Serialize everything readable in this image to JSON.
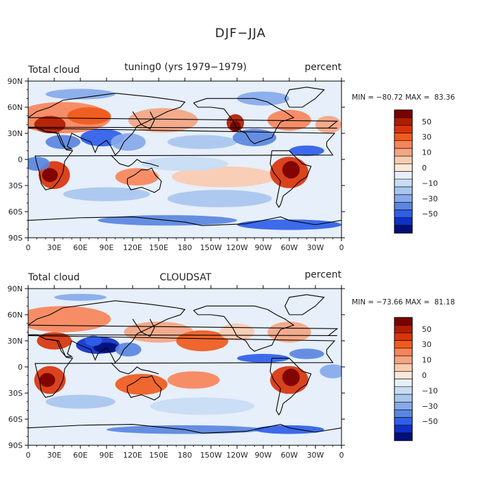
{
  "figure": {
    "title": "DJF−JJA"
  },
  "colors": {
    "levels_desc": [
      "#7a0000",
      "#b01c00",
      "#d8340a",
      "#f05a1c",
      "#f8845a",
      "#f4a582",
      "#fbcbb0",
      "#fde8d8",
      "#e6effa",
      "#c8dcf4",
      "#a9c6ee",
      "#86a9ea",
      "#5a86e0",
      "#2f5ee8",
      "#1030c8",
      "#00107a"
    ],
    "land_line": "#000000"
  },
  "chart_data": [
    {
      "type": "heatmap",
      "panel_id": "top",
      "left_title": "Total cloud",
      "center_title": "tuning0 (yrs 1979−1979)",
      "right_title": "percent",
      "min_label": "MIN = ",
      "min_value": "−80.72",
      "max_label": "MAX = ",
      "max_value": "83.36",
      "x_tick_labels": [
        "0",
        "30E",
        "60E",
        "90E",
        "120E",
        "150E",
        "180",
        "150W",
        "120W",
        "90W",
        "60W",
        "30W",
        "0"
      ],
      "y_tick_labels": [
        "90N",
        "60N",
        "30N",
        "0",
        "30S",
        "60S",
        "90S"
      ],
      "xlim": [
        0,
        360
      ],
      "ylim": [
        -90,
        90
      ],
      "colorbar_labels": [
        "50",
        "30",
        "10",
        "0",
        "−10",
        "−30",
        "−50"
      ],
      "colorbar_levels": [
        -70,
        -60,
        -50,
        -40,
        -30,
        -20,
        -10,
        0,
        5,
        10,
        20,
        30,
        40,
        50,
        60,
        70
      ]
    },
    {
      "type": "heatmap",
      "panel_id": "bottom",
      "left_title": "Total cloud",
      "center_title": "CLOUDSAT",
      "right_title": "percent",
      "min_label": "MIN = ",
      "min_value": "−73.66",
      "max_label": "MAX = ",
      "max_value": "81.18",
      "x_tick_labels": [
        "0",
        "30E",
        "60E",
        "90E",
        "120E",
        "150E",
        "180",
        "150W",
        "120W",
        "90W",
        "60W",
        "30W",
        "0"
      ],
      "y_tick_labels": [
        "90N",
        "60N",
        "30N",
        "0",
        "30S",
        "60S",
        "90S"
      ],
      "xlim": [
        0,
        360
      ],
      "ylim": [
        -90,
        90
      ],
      "colorbar_labels": [
        "50",
        "30",
        "10",
        "0",
        "−10",
        "−30",
        "−50"
      ],
      "colorbar_levels": [
        -70,
        -60,
        -50,
        -40,
        -30,
        -20,
        -10,
        0,
        5,
        10,
        20,
        30,
        40,
        50,
        60,
        70
      ]
    }
  ]
}
